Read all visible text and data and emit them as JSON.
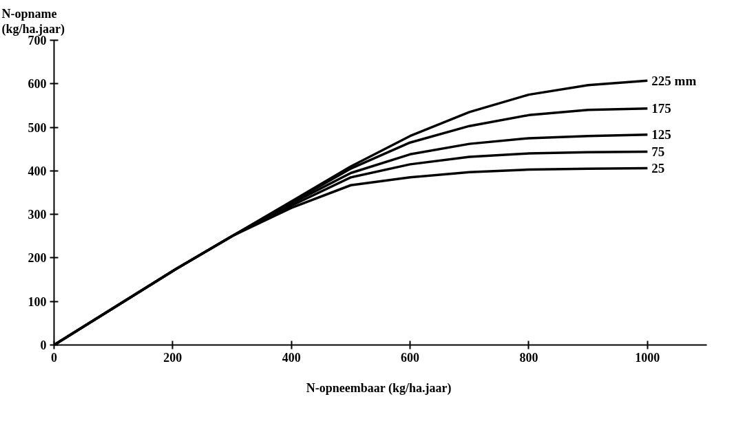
{
  "chart_data": {
    "type": "line",
    "xlabel": "N-opneembaar  (kg/ha.jaar)",
    "ylabel": "N-opname\n(kg/ha.jaar)",
    "x": [
      0,
      100,
      200,
      300,
      400,
      500,
      600,
      700,
      800,
      900,
      1000
    ],
    "series": [
      {
        "name": "225  mm",
        "color": "#000000",
        "values": [
          0,
          85,
          170,
          250,
          330,
          410,
          480,
          535,
          575,
          597,
          607
        ]
      },
      {
        "name": "175",
        "color": "#000000",
        "values": [
          0,
          85,
          170,
          250,
          328,
          405,
          465,
          503,
          528,
          540,
          543
        ]
      },
      {
        "name": "125",
        "color": "#000000",
        "values": [
          0,
          85,
          170,
          250,
          325,
          395,
          438,
          462,
          475,
          480,
          483
        ]
      },
      {
        "name": "75",
        "color": "#000000",
        "values": [
          0,
          85,
          170,
          250,
          320,
          385,
          415,
          432,
          440,
          443,
          444
        ]
      },
      {
        "name": "25",
        "color": "#000000",
        "values": [
          0,
          85,
          170,
          250,
          315,
          367,
          385,
          397,
          403,
          405,
          406
        ]
      }
    ],
    "xlim": [
      0,
      1100
    ],
    "ylim": [
      0,
      700
    ],
    "xticks": [
      0,
      200,
      400,
      600,
      800,
      1000
    ],
    "yticks": [
      0,
      100,
      200,
      300,
      400,
      500,
      600,
      700
    ],
    "grid": false,
    "marker": "none",
    "line_style": "solid"
  }
}
